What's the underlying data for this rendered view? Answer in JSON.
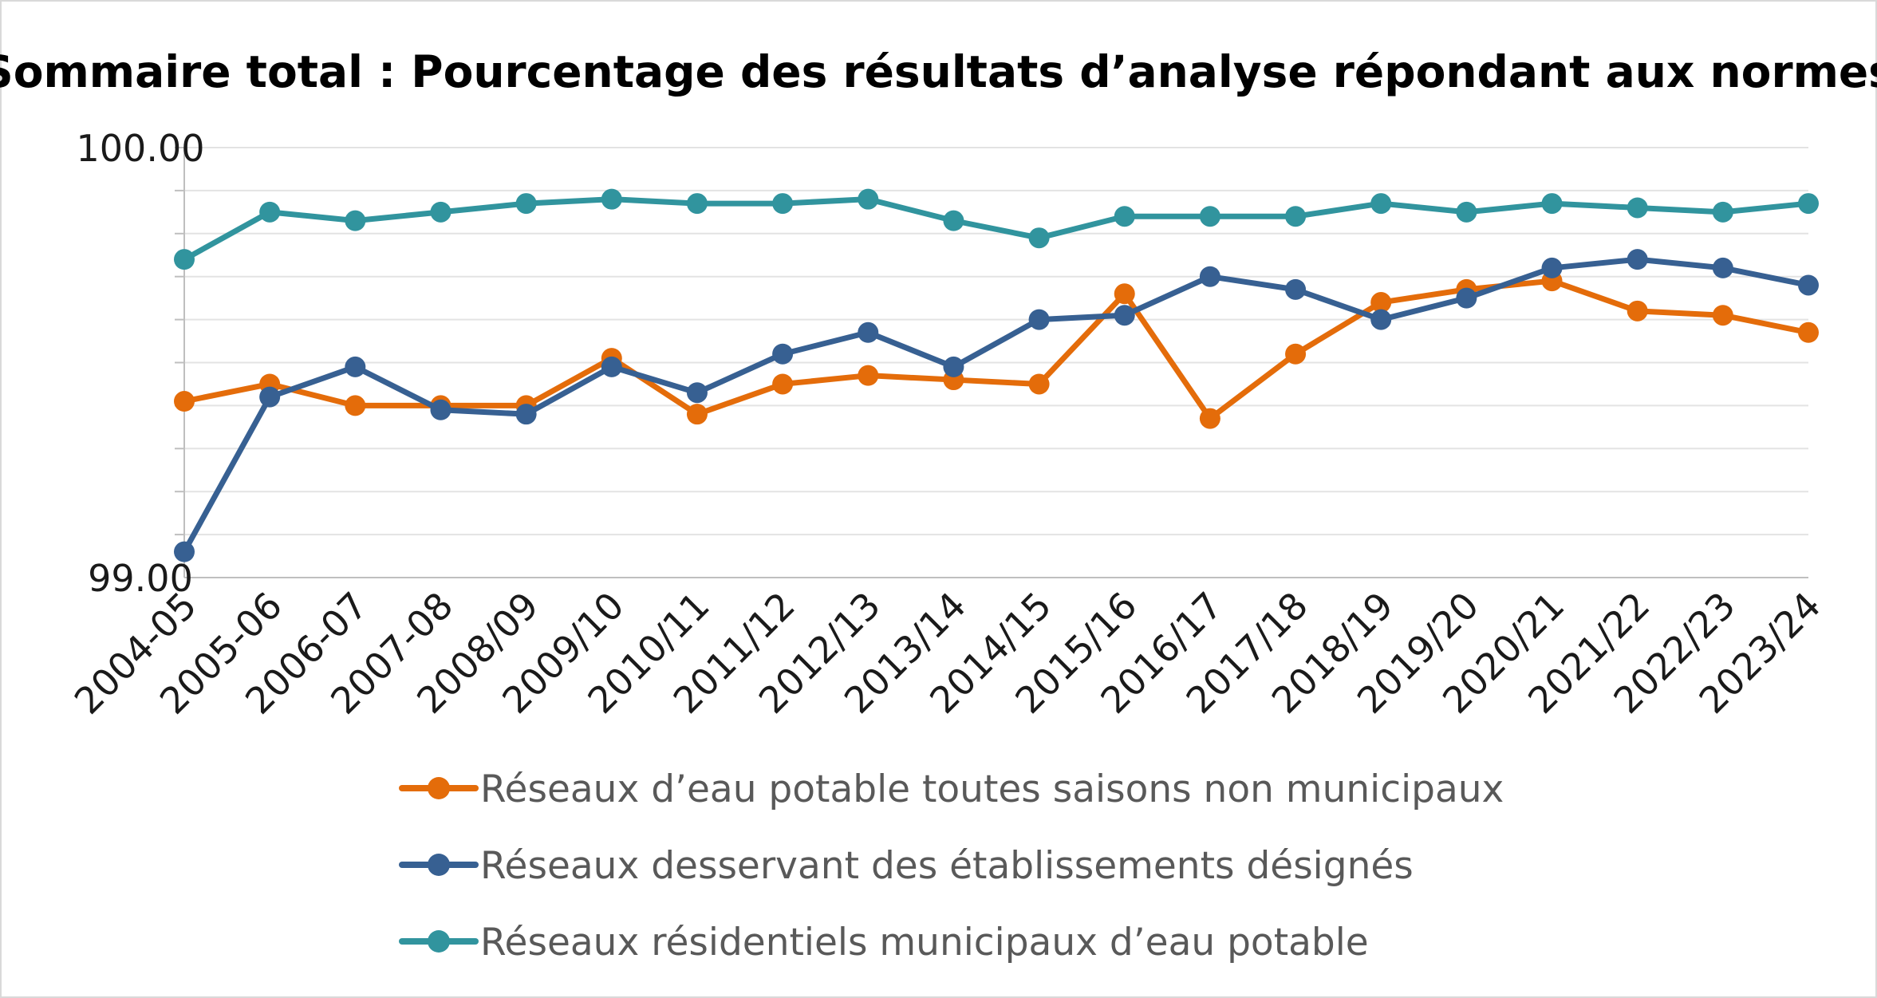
{
  "chart_data": {
    "type": "line",
    "title": "Sommaire total : Pourcentage des résultats d’analyse répondant aux normes",
    "xlabel": "",
    "ylabel": "",
    "ylim": [
      99.0,
      100.0
    ],
    "y_ticks": [
      "99.00",
      "100.00"
    ],
    "minor_gridlines": [
      99.1,
      99.2,
      99.3,
      99.4,
      99.5,
      99.6,
      99.7,
      99.8,
      99.9,
      100.0
    ],
    "grid": true,
    "legend_position": "bottom",
    "categories": [
      "2004-05",
      "2005-06",
      "2006-07",
      "2007-08",
      "2008/09",
      "2009/10",
      "2010/11",
      "2011/12",
      "2012/13",
      "2013/14",
      "2014/15",
      "2015/16",
      "2016/17",
      "2017/18",
      "2018/19",
      "2019/20",
      "2020/21",
      "2021/22",
      "2022/23",
      "2023/24"
    ],
    "series": [
      {
        "name": "Réseaux d’eau potable toutes saisons non municipaux",
        "color": "#E46C0A",
        "values": [
          99.41,
          99.45,
          99.4,
          99.4,
          99.4,
          99.51,
          99.38,
          99.45,
          99.47,
          99.46,
          99.45,
          99.66,
          99.37,
          99.52,
          99.64,
          99.67,
          99.69,
          99.62,
          99.61,
          99.57
        ]
      },
      {
        "name": "Réseaux desservant des établissements désignés",
        "color": "#376092",
        "values": [
          99.06,
          99.42,
          99.49,
          99.39,
          99.38,
          99.49,
          99.43,
          99.52,
          99.57,
          99.49,
          99.6,
          99.61,
          99.7,
          99.67,
          99.6,
          99.65,
          99.72,
          99.74,
          99.72,
          99.68
        ]
      },
      {
        "name": "Réseaux résidentiels municipaux d’eau potable",
        "color": "#31949E",
        "values": [
          99.74,
          99.85,
          99.83,
          99.85,
          99.87,
          99.88,
          99.87,
          99.87,
          99.88,
          99.83,
          99.79,
          99.84,
          99.84,
          99.84,
          99.87,
          99.85,
          99.87,
          99.86,
          99.85,
          99.87
        ]
      }
    ]
  }
}
